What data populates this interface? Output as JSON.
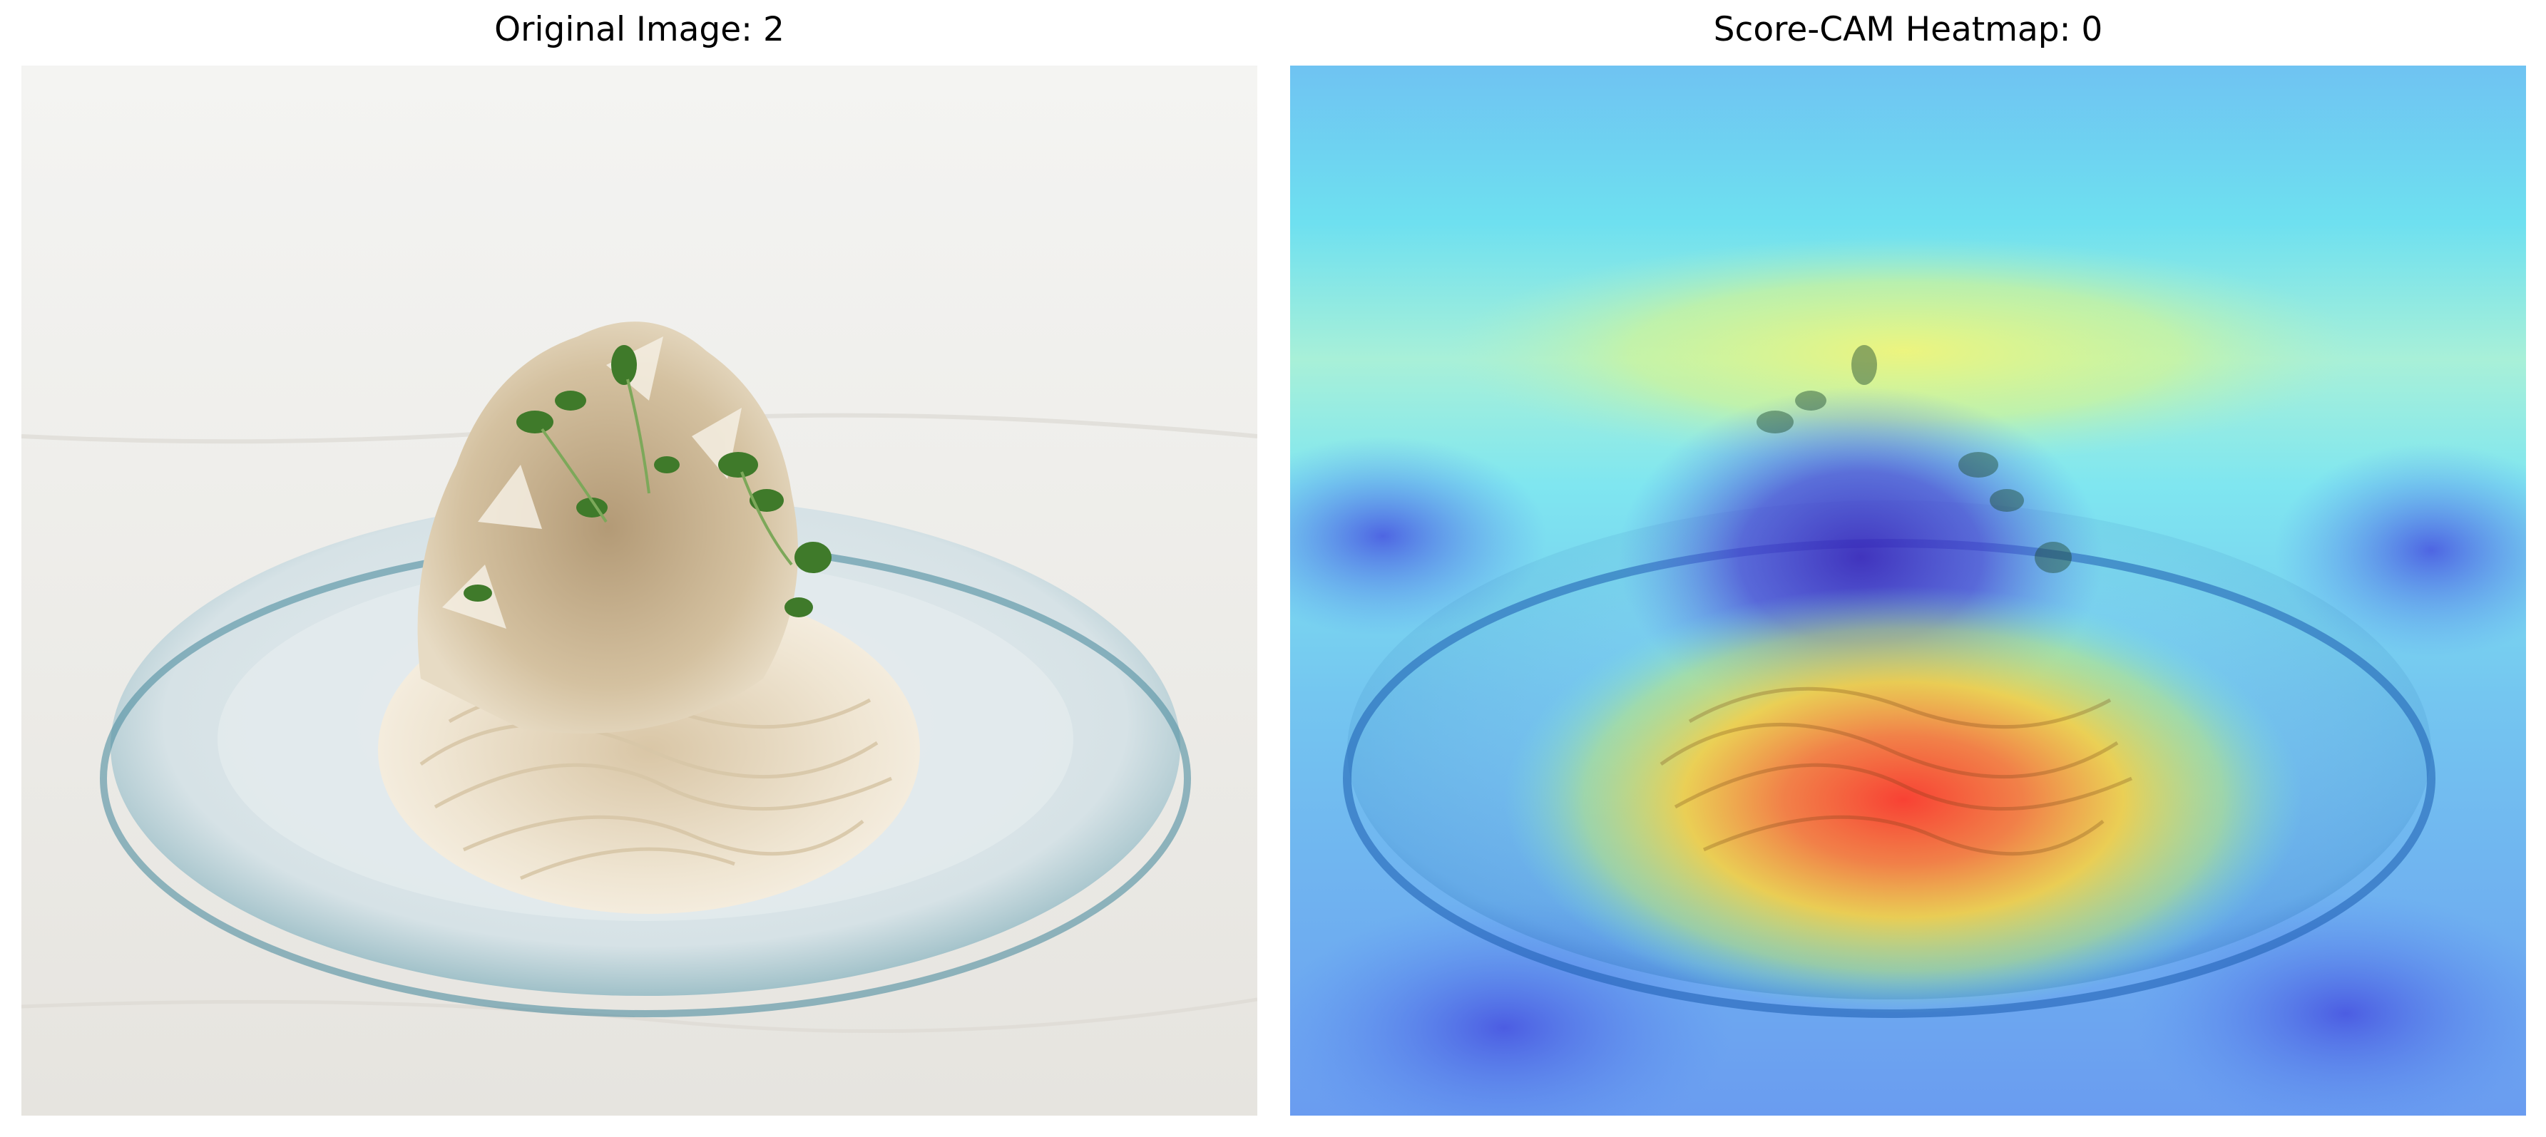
{
  "figure": {
    "left_title": "Original Image: 2",
    "right_title": "Score-CAM Heatmap: 0"
  },
  "panels": [
    {
      "name": "original-image",
      "content": "photo",
      "subject": "cold noodle dish with bonito flakes and sprouts on a clear glass plate"
    },
    {
      "name": "score-cam-heatmap",
      "content": "photo with jet-colormap heatmap overlay",
      "colormap": [
        "#0000ff",
        "#00ffff",
        "#ffff00",
        "#ff0000"
      ]
    }
  ]
}
